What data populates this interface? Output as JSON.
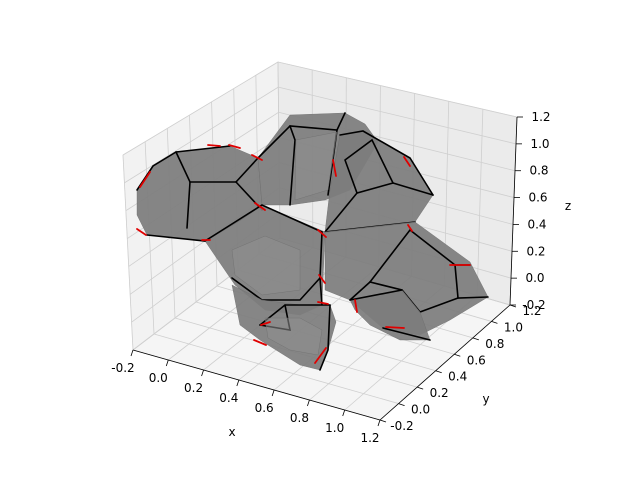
{
  "chart_data": {
    "type": "3d-polyhedra",
    "title": "",
    "xlabel": "x",
    "ylabel": "y",
    "zlabel": "z",
    "xlim": [
      -0.2,
      1.2
    ],
    "ylim": [
      -0.2,
      1.2
    ],
    "zlim": [
      -0.2,
      1.2
    ],
    "x_ticks": [
      "-0.2",
      "0.0",
      "0.2",
      "0.4",
      "0.6",
      "0.8",
      "1.0",
      "1.2"
    ],
    "y_ticks": [
      "-0.2",
      "0.0",
      "0.2",
      "0.4",
      "0.6",
      "0.8",
      "1.0",
      "1.2"
    ],
    "z_ticks": [
      "-0.2",
      "0.0",
      "0.2",
      "0.4",
      "0.6",
      "0.8",
      "1.0",
      "1.2"
    ],
    "grid": true,
    "face_color": "#7d7d7d",
    "edge_color": "#000000",
    "highlight_edge_color": "#e00000",
    "pane_color": "#f2f2f2"
  }
}
